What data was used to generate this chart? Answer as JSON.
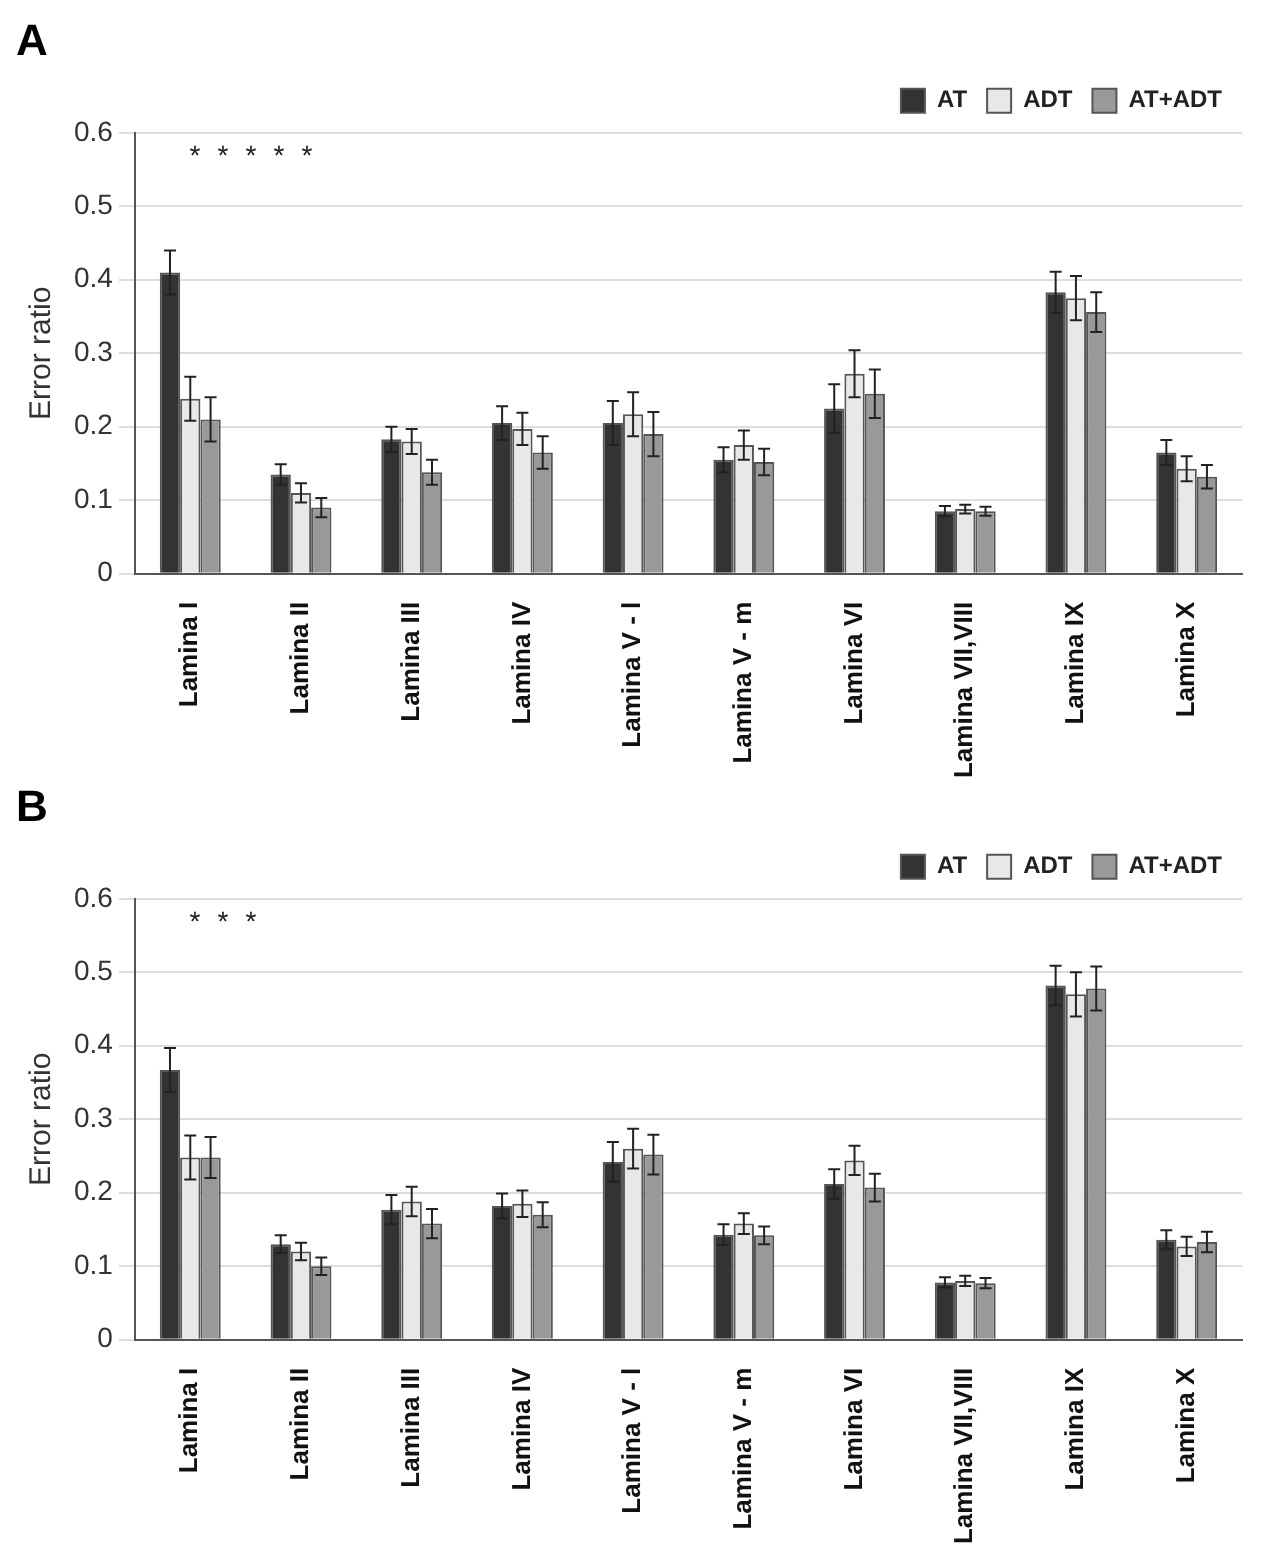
{
  "chart_data": [
    {
      "type": "bar",
      "title": "A",
      "ylabel": "Error ratio",
      "categories": [
        "Lamina I",
        "Lamina II",
        "Lamina III",
        "Lamina IV",
        "Lamina V - l",
        "Lamina V - m",
        "Lamina VI",
        "Lamina VII,VIII",
        "Lamina IX",
        "Lamina X"
      ],
      "series": [
        {
          "name": "AT",
          "color": "#333333",
          "values": [
            0.41,
            0.135,
            0.183,
            0.205,
            0.205,
            0.155,
            0.225,
            0.085,
            0.383,
            0.165
          ],
          "errors": [
            0.03,
            0.014,
            0.017,
            0.023,
            0.03,
            0.017,
            0.033,
            0.007,
            0.028,
            0.017
          ]
        },
        {
          "name": "ADT",
          "color": "#e8e8e8",
          "values": [
            0.238,
            0.11,
            0.18,
            0.197,
            0.217,
            0.175,
            0.272,
            0.088,
            0.375,
            0.143
          ],
          "errors": [
            0.03,
            0.013,
            0.017,
            0.022,
            0.03,
            0.02,
            0.032,
            0.006,
            0.03,
            0.017
          ]
        },
        {
          "name": "AT+ADT",
          "color": "#999999",
          "values": [
            0.21,
            0.09,
            0.138,
            0.165,
            0.19,
            0.152,
            0.245,
            0.085,
            0.356,
            0.132
          ],
          "errors": [
            0.03,
            0.013,
            0.017,
            0.022,
            0.03,
            0.018,
            0.033,
            0.006,
            0.027,
            0.016
          ]
        }
      ],
      "ylim": [
        0,
        0.6
      ],
      "yticks": [
        0,
        0.1,
        0.2,
        0.3,
        0.4,
        0.5,
        0.6
      ],
      "grid": "y",
      "legend": "top right",
      "annotations": [
        "*",
        "*",
        "*",
        "*",
        "*"
      ]
    },
    {
      "type": "bar",
      "title": "B",
      "ylabel": "Error ratio",
      "categories": [
        "Lamina I",
        "Lamina II",
        "Lamina III",
        "Lamina IV",
        "Lamina V - l",
        "Lamina V - m",
        "Lamina VI",
        "Lamina VII,VIII",
        "Lamina IX",
        "Lamina X"
      ],
      "series": [
        {
          "name": "AT",
          "color": "#333333",
          "values": [
            0.367,
            0.13,
            0.177,
            0.182,
            0.242,
            0.143,
            0.212,
            0.078,
            0.482,
            0.136
          ],
          "errors": [
            0.03,
            0.012,
            0.02,
            0.017,
            0.027,
            0.014,
            0.02,
            0.007,
            0.027,
            0.013
          ]
        },
        {
          "name": "ADT",
          "color": "#e8e8e8",
          "values": [
            0.248,
            0.12,
            0.188,
            0.185,
            0.26,
            0.158,
            0.244,
            0.08,
            0.47,
            0.127
          ],
          "errors": [
            0.03,
            0.012,
            0.02,
            0.018,
            0.027,
            0.014,
            0.02,
            0.007,
            0.03,
            0.013
          ]
        },
        {
          "name": "AT+ADT",
          "color": "#999999",
          "values": [
            0.248,
            0.1,
            0.158,
            0.17,
            0.252,
            0.142,
            0.207,
            0.077,
            0.478,
            0.133
          ],
          "errors": [
            0.028,
            0.012,
            0.02,
            0.017,
            0.027,
            0.012,
            0.019,
            0.007,
            0.03,
            0.014
          ]
        }
      ],
      "ylim": [
        0,
        0.6
      ],
      "yticks": [
        0,
        0.1,
        0.2,
        0.3,
        0.4,
        0.5,
        0.6
      ],
      "grid": "y",
      "legend": "top right",
      "annotations": [
        "*",
        "*",
        "*"
      ]
    }
  ]
}
